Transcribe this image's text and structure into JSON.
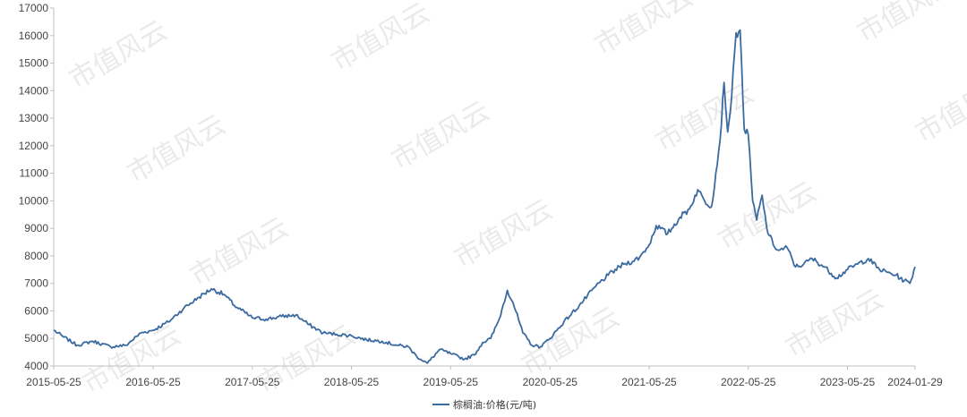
{
  "chart_data": {
    "type": "line",
    "title": "",
    "xlabel": "",
    "ylabel": "",
    "ylim": [
      4000,
      17000
    ],
    "yticks": [
      4000,
      5000,
      6000,
      7000,
      8000,
      9000,
      10000,
      11000,
      12000,
      13000,
      14000,
      15000,
      16000,
      17000
    ],
    "xlim": [
      "2015-05-25",
      "2024-01-29"
    ],
    "xtick_labels": [
      "2015-05-25",
      "2016-05-25",
      "2017-05-25",
      "2018-05-25",
      "2019-05-25",
      "2020-05-25",
      "2021-05-25",
      "2022-05-25",
      "2023-05-25",
      "2024-01-29"
    ],
    "grid": false,
    "legend_position": "bottom",
    "series": [
      {
        "name": "棕榈油:价格(元/吨)",
        "color": "#3b6aa0",
        "x": [
          "2015-05-25",
          "2015-07-01",
          "2015-08-20",
          "2015-10-15",
          "2015-12-20",
          "2016-02-15",
          "2016-04-10",
          "2016-05-25",
          "2016-07-20",
          "2016-09-15",
          "2016-11-10",
          "2016-12-25",
          "2017-02-10",
          "2017-03-20",
          "2017-05-25",
          "2017-07-15",
          "2017-09-10",
          "2017-11-01",
          "2017-12-20",
          "2018-02-10",
          "2018-04-01",
          "2018-05-25",
          "2018-07-20",
          "2018-09-15",
          "2018-11-10",
          "2018-12-20",
          "2019-01-20",
          "2019-03-01",
          "2019-04-15",
          "2019-05-25",
          "2019-07-15",
          "2019-08-20",
          "2019-09-20",
          "2019-10-20",
          "2019-11-20",
          "2019-12-20",
          "2020-01-10",
          "2020-02-15",
          "2020-03-20",
          "2020-04-20",
          "2020-05-25",
          "2020-07-15",
          "2020-09-10",
          "2020-11-10",
          "2020-12-25",
          "2021-02-20",
          "2021-03-25",
          "2021-04-20",
          "2021-05-25",
          "2021-06-20",
          "2021-08-01",
          "2021-09-15",
          "2021-10-20",
          "2021-11-20",
          "2021-12-15",
          "2022-01-10",
          "2022-02-10",
          "2022-02-25",
          "2022-03-10",
          "2022-03-25",
          "2022-04-10",
          "2022-04-25",
          "2022-05-10",
          "2022-05-25",
          "2022-06-10",
          "2022-06-25",
          "2022-07-15",
          "2022-08-01",
          "2022-08-25",
          "2022-09-15",
          "2022-10-15",
          "2022-11-15",
          "2022-12-15",
          "2023-01-15",
          "2023-03-01",
          "2023-04-15",
          "2023-05-25",
          "2023-07-01",
          "2023-08-10",
          "2023-09-20",
          "2023-10-20",
          "2023-11-20",
          "2023-12-20",
          "2024-01-10",
          "2024-01-29"
        ],
        "values": [
          5300,
          5050,
          4750,
          4900,
          4700,
          4750,
          5200,
          5300,
          5600,
          6100,
          6500,
          6800,
          6600,
          6200,
          5750,
          5700,
          5800,
          5850,
          5500,
          5200,
          5150,
          5100,
          4950,
          4900,
          4750,
          4700,
          4350,
          4100,
          4600,
          4450,
          4250,
          4400,
          4850,
          5000,
          5700,
          6750,
          6300,
          5200,
          4750,
          4700,
          5000,
          5600,
          6200,
          6900,
          7300,
          7700,
          7800,
          7950,
          8400,
          9100,
          8800,
          9400,
          9700,
          10400,
          10000,
          9800,
          12200,
          14300,
          12500,
          13800,
          16100,
          16200,
          12600,
          12400,
          10000,
          9300,
          10200,
          9000,
          8400,
          8200,
          8300,
          7600,
          7700,
          7900,
          7600,
          7200,
          7500,
          7700,
          7900,
          7500,
          7400,
          7300,
          7100,
          7000,
          7600
        ]
      }
    ]
  },
  "watermark_text": "市值风云"
}
